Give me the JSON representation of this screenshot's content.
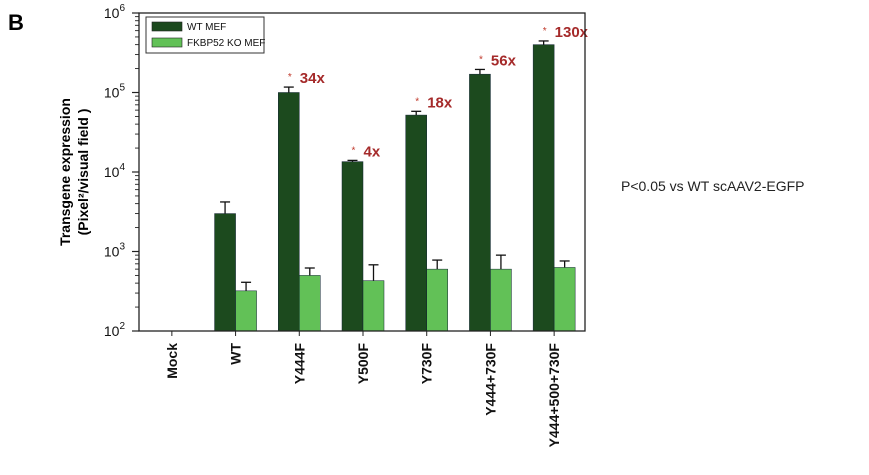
{
  "panel_label": "B",
  "note": "P<0.05 vs WT scAAV2-EGFP",
  "colors": {
    "wt": "#1c4a1e",
    "ko": "#62c157",
    "fold": "#a52a2a",
    "star": "#c0392b"
  },
  "chart_data": {
    "type": "bar",
    "yscale": "log",
    "ylim": [
      100,
      1000000
    ],
    "ylabel_line1": "Transgene expression",
    "ylabel_line2": "(Pixel²/visual field )",
    "yticks": [
      {
        "value": 100,
        "base": "10",
        "exp": "2"
      },
      {
        "value": 1000,
        "base": "10",
        "exp": "3"
      },
      {
        "value": 10000,
        "base": "10",
        "exp": "4"
      },
      {
        "value": 100000,
        "base": "10",
        "exp": "5"
      },
      {
        "value": 1000000,
        "base": "10",
        "exp": "6"
      }
    ],
    "categories": [
      "Mock",
      "WT",
      "Y444F",
      "Y500F",
      "Y730F",
      "Y444+730F",
      "Y444+500+730F"
    ],
    "series": [
      {
        "name": "WT MEF",
        "values": [
          null,
          3000,
          100000,
          13500,
          52000,
          170000,
          400000
        ],
        "errors": [
          null,
          4200,
          117000,
          14000,
          58000,
          195000,
          445000
        ]
      },
      {
        "name": "FKBP52 KO MEF",
        "values": [
          null,
          320,
          500,
          430,
          600,
          600,
          630
        ],
        "errors": [
          null,
          410,
          620,
          680,
          780,
          900,
          760
        ]
      }
    ],
    "annotations": [
      {
        "category": "Y444F",
        "star": "*",
        "label": "34x"
      },
      {
        "category": "Y500F",
        "star": "*",
        "label": "4x"
      },
      {
        "category": "Y730F",
        "star": "*",
        "label": "18x"
      },
      {
        "category": "Y444+730F",
        "star": "*",
        "label": "56x"
      },
      {
        "category": "Y444+500+730F",
        "star": "*",
        "label": "130x"
      }
    ],
    "legend_position": "top-left"
  }
}
